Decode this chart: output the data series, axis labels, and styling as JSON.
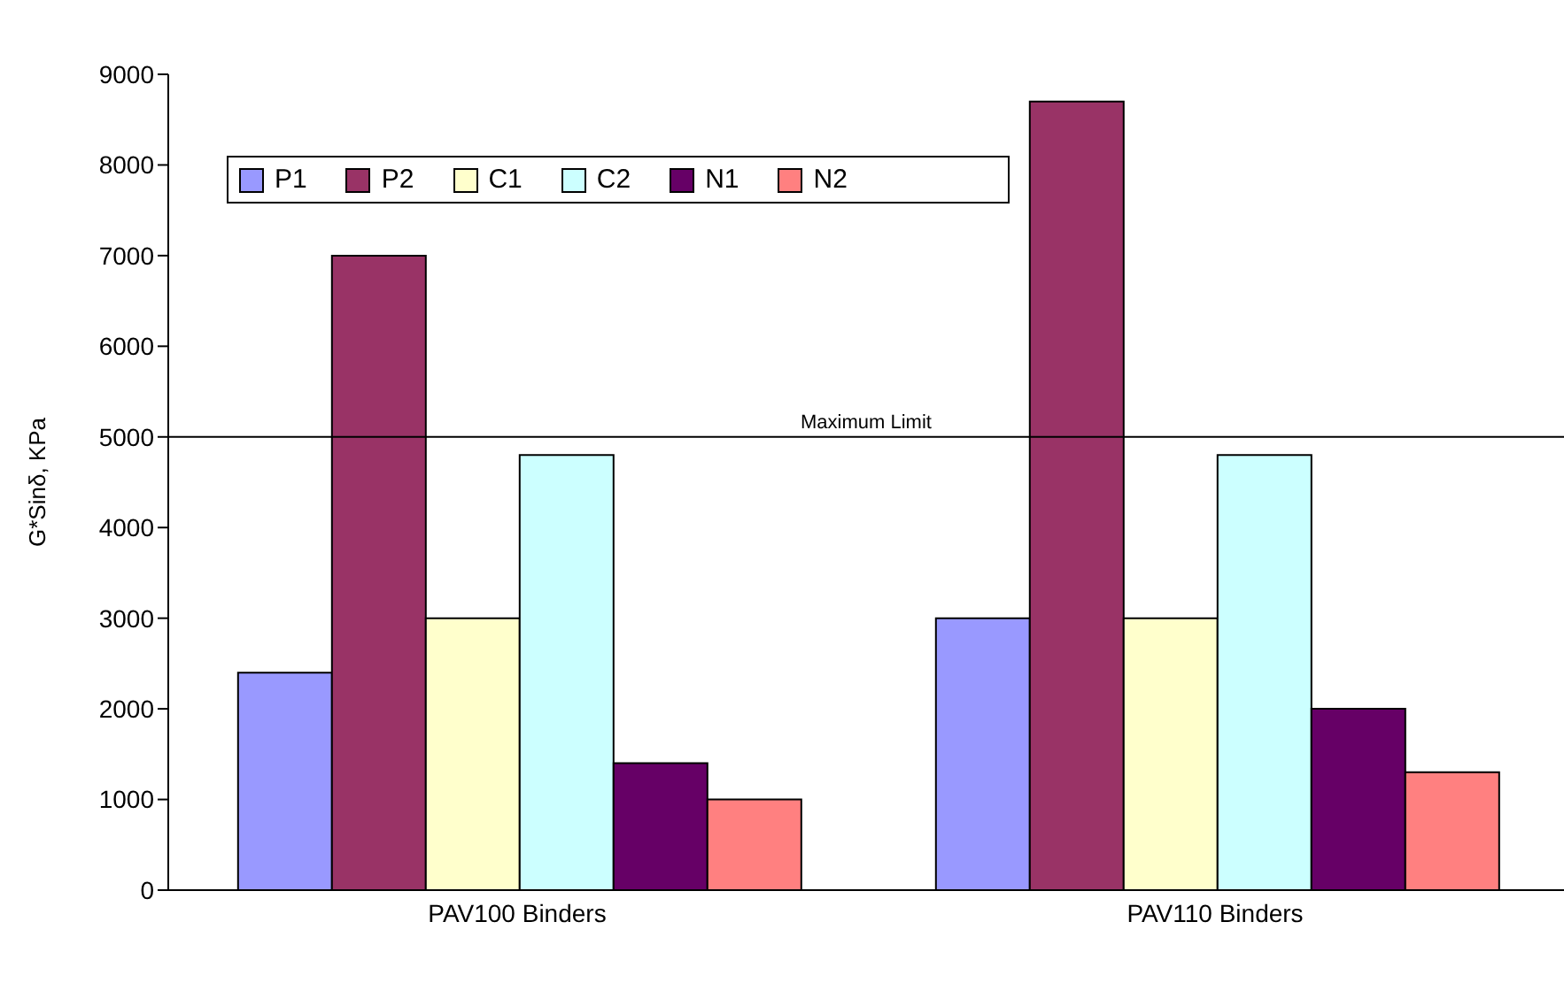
{
  "chart_data": {
    "type": "bar",
    "ylabel": "G*Sinδ, KPa",
    "categories": [
      "PAV100 Binders",
      "PAV110 Binders"
    ],
    "series": [
      {
        "name": "P1",
        "color": "#9999ff",
        "values": [
          2400,
          3000
        ]
      },
      {
        "name": "P2",
        "color": "#993366",
        "values": [
          7000,
          8700
        ]
      },
      {
        "name": "C1",
        "color": "#ffffcc",
        "values": [
          3000,
          3000
        ]
      },
      {
        "name": "C2",
        "color": "#ccffff",
        "values": [
          4800,
          4800
        ]
      },
      {
        "name": "N1",
        "color": "#660066",
        "values": [
          1400,
          2000
        ]
      },
      {
        "name": "N2",
        "color": "#ff8080",
        "values": [
          1000,
          1300
        ]
      }
    ],
    "ylim": [
      0,
      9000
    ],
    "yticks": [
      0,
      1000,
      2000,
      3000,
      4000,
      5000,
      6000,
      7000,
      8000,
      9000
    ],
    "ref_lines": [
      {
        "axis": "y",
        "value": 5000,
        "label": "Maximum Limit"
      }
    ],
    "grid": false,
    "legend": "top left"
  }
}
